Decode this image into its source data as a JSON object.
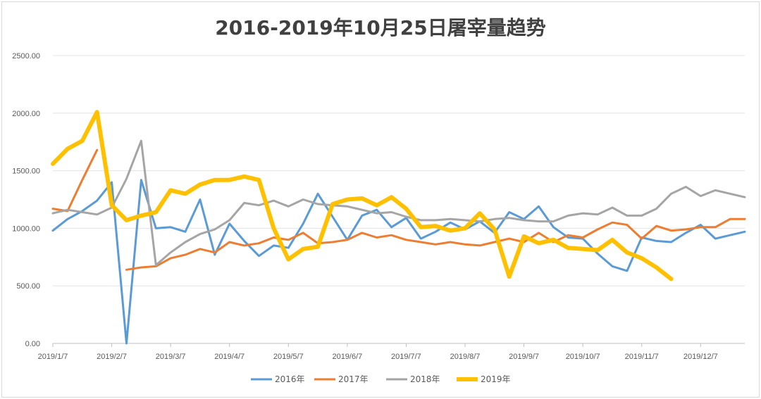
{
  "chart_data": {
    "type": "line",
    "title": "2016-2019年10月25日屠宰量趋势",
    "ylim": [
      0,
      2500
    ],
    "yticks": [
      "0.00",
      "500.00",
      "1000.00",
      "1500.00",
      "2000.00",
      "2500.00"
    ],
    "x_count": 48,
    "x_tick_labels": [
      {
        "index": 0,
        "label": "2019/1/7"
      },
      {
        "index": 4,
        "label": "2019/2/7"
      },
      {
        "index": 8,
        "label": "2019/3/7"
      },
      {
        "index": 12,
        "label": "2019/4/7"
      },
      {
        "index": 16,
        "label": "2019/5/7"
      },
      {
        "index": 20,
        "label": "2019/6/7"
      },
      {
        "index": 24,
        "label": "2019/7/7"
      },
      {
        "index": 28,
        "label": "2019/8/7"
      },
      {
        "index": 32,
        "label": "2019/9/7"
      },
      {
        "index": 36,
        "label": "2019/10/7"
      },
      {
        "index": 40,
        "label": "2019/11/7"
      },
      {
        "index": 44,
        "label": "2019/12/7"
      }
    ],
    "grid": "horizontal",
    "legend_position": "bottom",
    "series": [
      {
        "name": "2016年",
        "color": "#5b9bd5",
        "width": 3,
        "values": [
          980,
          1080,
          1150,
          1240,
          1400,
          0,
          1420,
          1000,
          1010,
          970,
          1250,
          770,
          1040,
          890,
          760,
          850,
          830,
          1040,
          1300,
          1100,
          900,
          1110,
          1160,
          1010,
          1090,
          910,
          970,
          1050,
          990,
          1060,
          960,
          1140,
          1080,
          1190,
          1010,
          920,
          910,
          780,
          670,
          630,
          920,
          890,
          880,
          960,
          1030,
          910,
          940,
          970
        ]
      },
      {
        "name": "2017年",
        "color": "#ed7d31",
        "width": 3,
        "values": [
          1170,
          1150,
          1420,
          1680,
          null,
          640,
          660,
          670,
          740,
          770,
          820,
          790,
          880,
          850,
          870,
          920,
          900,
          960,
          870,
          880,
          900,
          960,
          920,
          940,
          900,
          880,
          860,
          880,
          860,
          850,
          880,
          910,
          880,
          960,
          880,
          940,
          920,
          990,
          1050,
          1030,
          910,
          1020,
          980,
          990,
          1010,
          1010,
          1080,
          1080
        ]
      },
      {
        "name": "2018年",
        "color": "#a5a5a5",
        "width": 3,
        "values": [
          1130,
          1160,
          1140,
          1120,
          1180,
          1430,
          1760,
          680,
          790,
          880,
          950,
          990,
          1070,
          1220,
          1200,
          1240,
          1190,
          1250,
          1210,
          1200,
          1190,
          1160,
          1130,
          1140,
          1100,
          1070,
          1070,
          1080,
          1070,
          1060,
          1080,
          1090,
          1070,
          1060,
          1060,
          1110,
          1130,
          1120,
          1180,
          1110,
          1110,
          1170,
          1300,
          1360,
          1280,
          1330,
          1300,
          1270
        ]
      },
      {
        "name": "2019年",
        "color": "#ffc000",
        "width": 6,
        "values": [
          1560,
          1690,
          1760,
          2010,
          1200,
          1070,
          1110,
          1140,
          1330,
          1300,
          1380,
          1420,
          1420,
          1450,
          1420,
          1000,
          730,
          820,
          840,
          1210,
          1250,
          1260,
          1200,
          1270,
          1170,
          1010,
          1020,
          980,
          1000,
          1130,
          990,
          580,
          930,
          870,
          900,
          830,
          820,
          810,
          900,
          790,
          740,
          660,
          560,
          null,
          null,
          null,
          null,
          null
        ]
      }
    ]
  }
}
